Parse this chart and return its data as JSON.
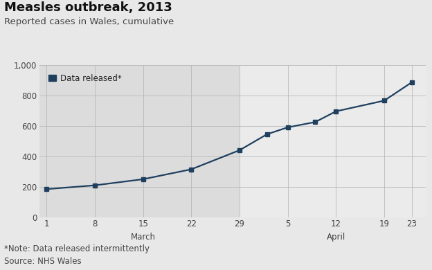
{
  "title": "Measles outbreak, 2013",
  "subtitle": "Reported cases in Wales, cumulative",
  "footnote": "*Note: Data released intermittently",
  "source": "Source: NHS Wales",
  "legend_label": "Data released*",
  "line_color": "#1f3f5f",
  "marker_color": "#1f3f5f",
  "bg_color": "#e8e8e8",
  "plot_bg_left_color": "#dcdcdc",
  "plot_bg_right_color": "#ebebeb",
  "x_labels": [
    "1",
    "8",
    "15",
    "22",
    "29",
    "5",
    "12",
    "19",
    "23"
  ],
  "x_positions": [
    0,
    7,
    14,
    21,
    28,
    35,
    42,
    49,
    53
  ],
  "shaded_boundary": 28,
  "data_points": [
    [
      0,
      185
    ],
    [
      7,
      210
    ],
    [
      14,
      250
    ],
    [
      21,
      315
    ],
    [
      28,
      440
    ],
    [
      32,
      545
    ],
    [
      35,
      590
    ],
    [
      39,
      625
    ],
    [
      42,
      695
    ],
    [
      49,
      765
    ],
    [
      53,
      885
    ]
  ],
  "ylim": [
    0,
    1000
  ],
  "yticks": [
    0,
    200,
    400,
    600,
    800,
    1000
  ],
  "xlim_min": -1,
  "xlim_max": 55,
  "title_fontsize": 13,
  "subtitle_fontsize": 9.5,
  "tick_fontsize": 8.5,
  "footnote_fontsize": 8.5,
  "march_x_center": 14,
  "april_x_center": 42
}
